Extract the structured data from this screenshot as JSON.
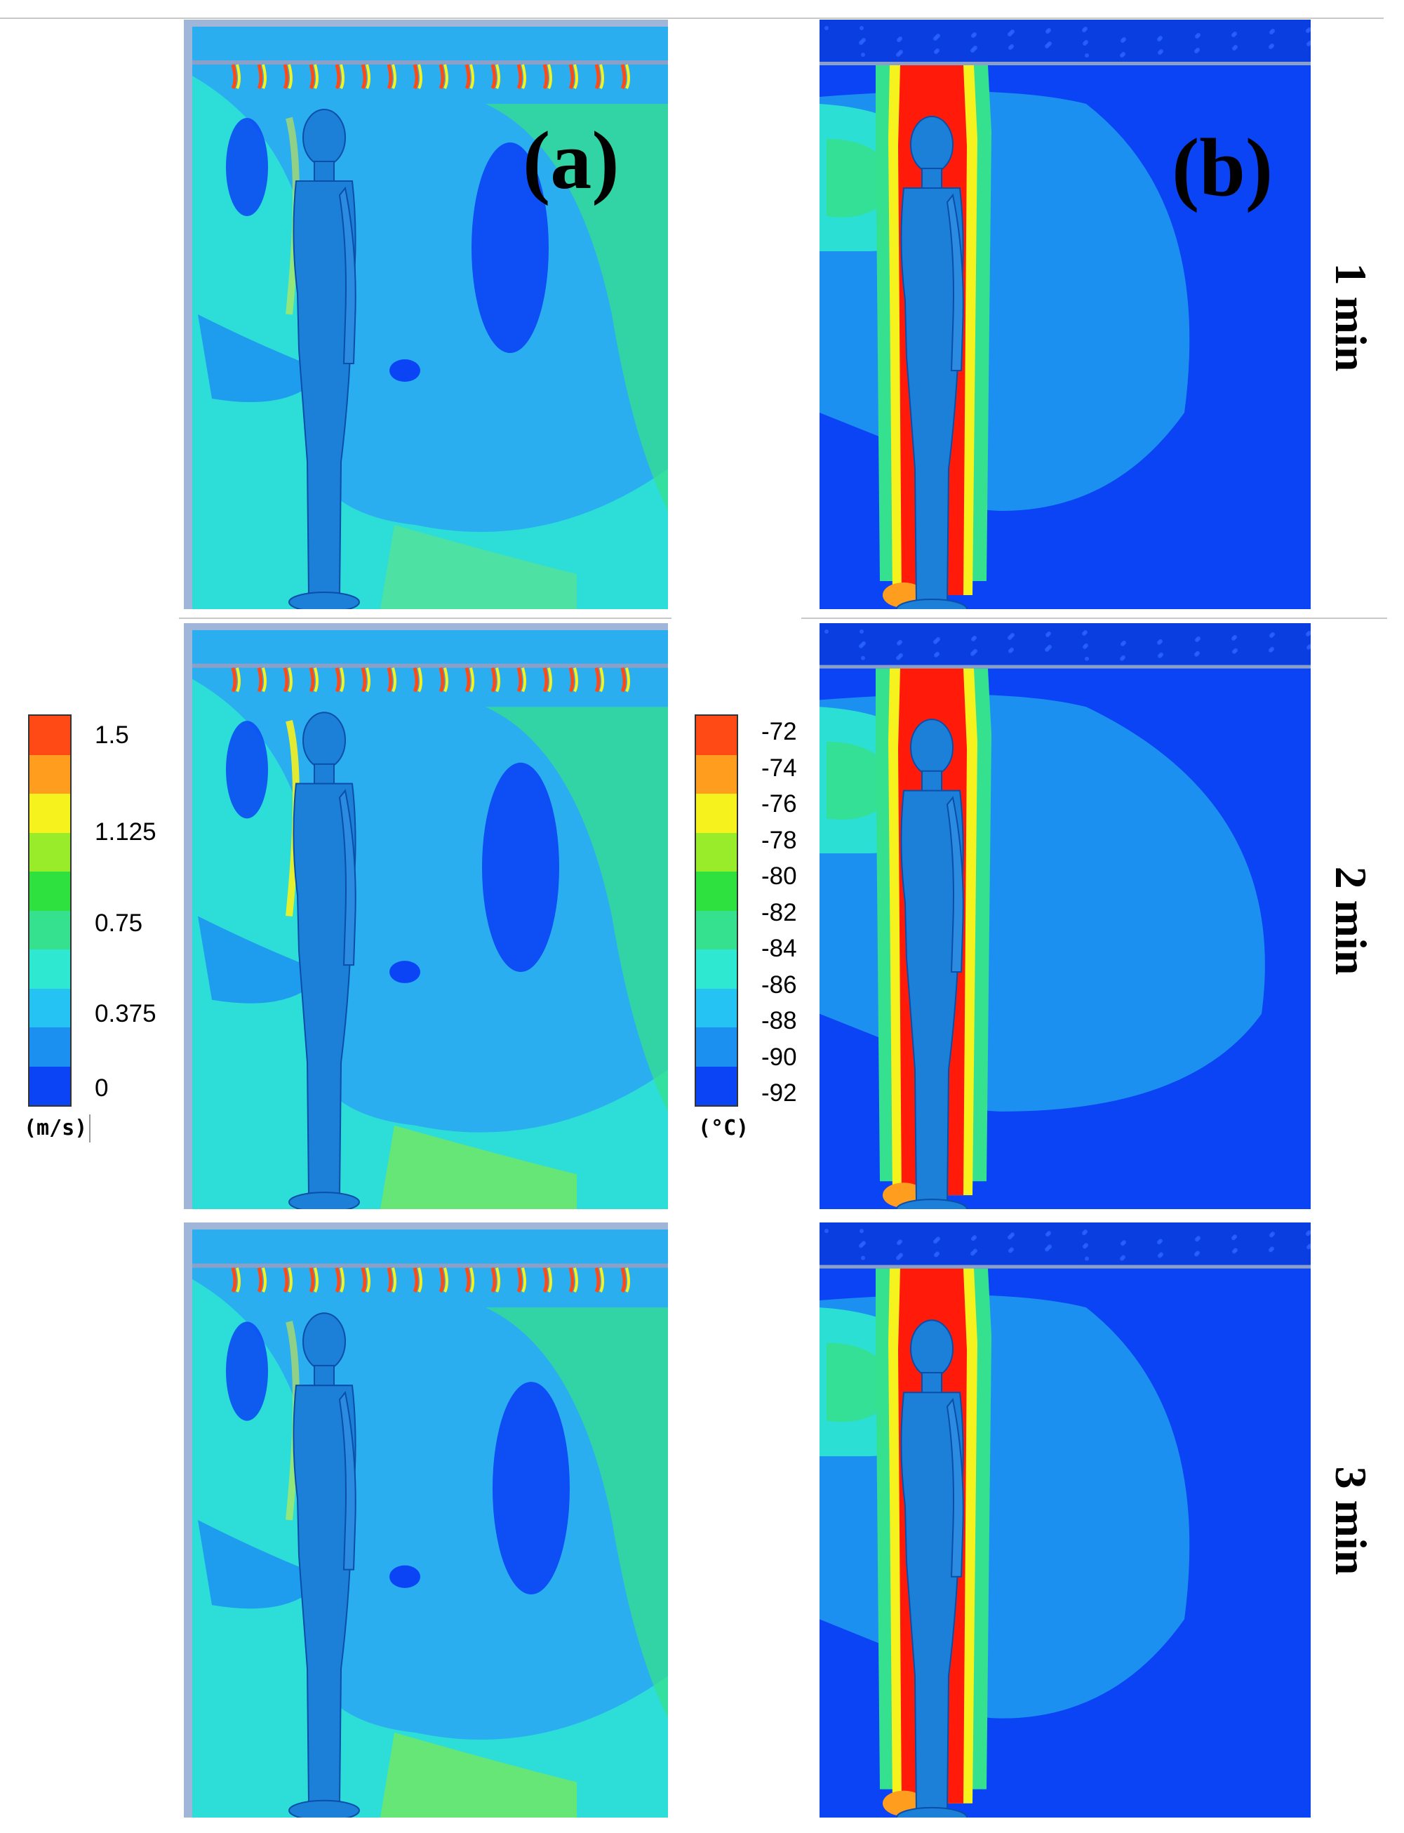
{
  "figure": {
    "panel_a_label": "(a)",
    "panel_b_label": "(b)",
    "time_labels": [
      "1 min",
      "2 min",
      "3 min"
    ]
  },
  "legend_velocity": {
    "unit": "(m/s)",
    "ticks": [
      "1.5",
      "1.125",
      "0.75",
      "0.375",
      "0"
    ],
    "colors": [
      "#ff4a16",
      "#ff9d1f",
      "#f6f21d",
      "#98ec2a",
      "#2ee13e",
      "#35e08e",
      "#2ee8d2",
      "#25c3f3",
      "#1c90f1",
      "#0b44f5"
    ]
  },
  "legend_temperature": {
    "unit": "(°C)",
    "ticks": [
      "-72",
      "-74",
      "-76",
      "-78",
      "-80",
      "-82",
      "-84",
      "-86",
      "-88",
      "-90",
      "-92"
    ],
    "colors": [
      "#ff4a16",
      "#ff9d1f",
      "#f6f21d",
      "#98ec2a",
      "#2ee13e",
      "#35e08e",
      "#2ee8d2",
      "#25c3f3",
      "#1c90f1",
      "#0b44f5"
    ]
  }
}
